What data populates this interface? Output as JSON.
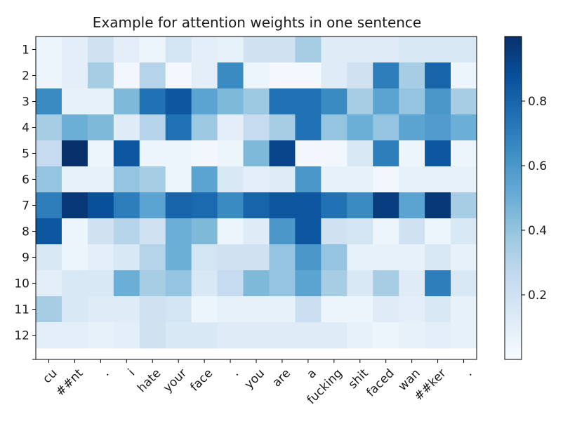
{
  "chart_data": {
    "type": "heatmap",
    "title": "Example for attention weights in one sentence",
    "xlabel": "",
    "ylabel": "",
    "x_tick_labels": [
      "cu",
      "##nt",
      ".",
      "i",
      "hate",
      "your",
      "face",
      ".",
      "you",
      "are",
      "a",
      "fucking",
      "shit",
      "faced",
      "wan",
      "##ker",
      "."
    ],
    "y_tick_labels": [
      "1",
      "2",
      "3",
      "4",
      "5",
      "6",
      "7",
      "8",
      "9",
      "10",
      "11",
      "12"
    ],
    "colormap": "Blues",
    "colorbar": {
      "ticks": [
        0.2,
        0.4,
        0.6,
        0.8
      ],
      "tick_labels": [
        "0.2",
        "0.4",
        "0.6",
        "0.8"
      ],
      "range": [
        0.0,
        1.0
      ]
    },
    "values": [
      [
        0.05,
        0.1,
        0.2,
        0.1,
        0.05,
        0.18,
        0.1,
        0.08,
        0.2,
        0.2,
        0.35,
        0.12,
        0.12,
        0.12,
        0.15,
        0.15,
        0.15
      ],
      [
        0.05,
        0.1,
        0.35,
        0.03,
        0.3,
        0.02,
        0.1,
        0.65,
        0.05,
        0.02,
        0.02,
        0.12,
        0.2,
        0.7,
        0.35,
        0.8,
        0.05
      ],
      [
        0.65,
        0.08,
        0.08,
        0.45,
        0.75,
        0.85,
        0.55,
        0.45,
        0.38,
        0.75,
        0.75,
        0.65,
        0.35,
        0.55,
        0.4,
        0.6,
        0.35
      ],
      [
        0.35,
        0.5,
        0.45,
        0.12,
        0.3,
        0.75,
        0.38,
        0.1,
        0.25,
        0.35,
        0.75,
        0.4,
        0.5,
        0.4,
        0.55,
        0.58,
        0.5
      ],
      [
        0.25,
        1.0,
        0.05,
        0.85,
        0.05,
        0.05,
        0.03,
        0.05,
        0.45,
        0.92,
        0.03,
        0.03,
        0.15,
        0.7,
        0.05,
        0.85,
        0.05
      ],
      [
        0.4,
        0.08,
        0.08,
        0.4,
        0.35,
        0.05,
        0.55,
        0.15,
        0.1,
        0.12,
        0.6,
        0.08,
        0.08,
        0.03,
        0.08,
        0.08,
        0.08
      ],
      [
        0.7,
        0.97,
        0.88,
        0.7,
        0.55,
        0.8,
        0.78,
        0.65,
        0.8,
        0.85,
        0.85,
        0.75,
        0.65,
        0.95,
        0.55,
        0.97,
        0.35
      ],
      [
        0.85,
        0.05,
        0.2,
        0.3,
        0.2,
        0.5,
        0.45,
        0.05,
        0.12,
        0.6,
        0.85,
        0.2,
        0.18,
        0.05,
        0.2,
        0.05,
        0.15
      ],
      [
        0.15,
        0.05,
        0.1,
        0.15,
        0.3,
        0.5,
        0.18,
        0.2,
        0.2,
        0.4,
        0.6,
        0.4,
        0.08,
        0.08,
        0.08,
        0.15,
        0.08
      ],
      [
        0.1,
        0.15,
        0.15,
        0.5,
        0.35,
        0.4,
        0.15,
        0.25,
        0.45,
        0.4,
        0.55,
        0.35,
        0.15,
        0.35,
        0.12,
        0.7,
        0.15
      ],
      [
        0.35,
        0.15,
        0.12,
        0.12,
        0.2,
        0.18,
        0.05,
        0.08,
        0.08,
        0.08,
        0.22,
        0.05,
        0.05,
        0.12,
        0.1,
        0.15,
        0.08
      ],
      [
        0.1,
        0.1,
        0.08,
        0.1,
        0.2,
        0.15,
        0.15,
        0.12,
        0.12,
        0.12,
        0.12,
        0.12,
        0.08,
        0.05,
        0.08,
        0.1,
        0.08
      ]
    ]
  }
}
